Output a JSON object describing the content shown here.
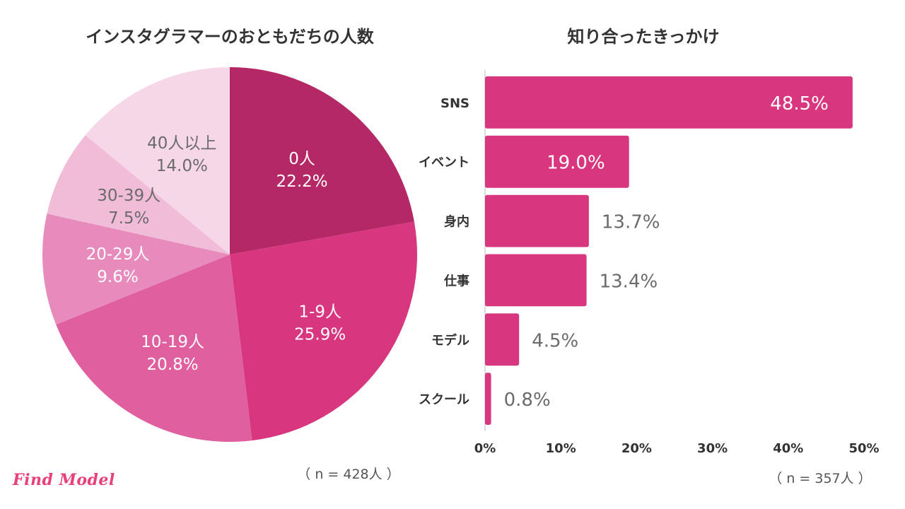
{
  "chart_data": [
    {
      "type": "pie",
      "title": "インスタグラマーのおともだちの人数",
      "categories": [
        "0人",
        "1-9人",
        "10-19人",
        "20-29人",
        "30-39人",
        "40人以上"
      ],
      "values": [
        22.2,
        25.9,
        20.8,
        9.6,
        7.5,
        14.0
      ],
      "value_labels": [
        "22.2%",
        "25.9%",
        "20.8%",
        "9.6%",
        "7.5%",
        "14.0%"
      ],
      "colors": [
        "#b52866",
        "#d8367f",
        "#e05f9f",
        "#e78bbd",
        "#f1bcd8",
        "#f6d7e7"
      ],
      "label_colors": [
        "#ffffff",
        "#ffffff",
        "#ffffff",
        "#ffffff",
        "#6b6b6b",
        "#6b6b6b"
      ],
      "note": "（ n = 428人 ）"
    },
    {
      "type": "bar",
      "orientation": "horizontal",
      "title": "知り合ったきっかけ",
      "categories": [
        "SNS",
        "イベント",
        "身内",
        "仕事",
        "モデル",
        "スクール"
      ],
      "values": [
        48.5,
        19.0,
        13.7,
        13.4,
        4.5,
        0.8
      ],
      "value_labels": [
        "48.5%",
        "19.0%",
        "13.7%",
        "13.4%",
        "4.5%",
        "0.8%"
      ],
      "xlim": [
        0,
        50
      ],
      "ticks": [
        0,
        10,
        20,
        30,
        40,
        50
      ],
      "tick_labels": [
        "0%",
        "10%",
        "20%",
        "30%",
        "40%",
        "50%"
      ],
      "grid": false,
      "color": "#d8367f",
      "note": "（ n = 357人 ）"
    }
  ],
  "brand": {
    "logo_text": "Find Model",
    "color": "#e8407a"
  }
}
